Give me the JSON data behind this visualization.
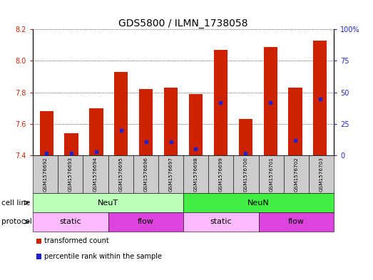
{
  "title": "GDS5800 / ILMN_1738058",
  "samples": [
    "GSM1576692",
    "GSM1576693",
    "GSM1576694",
    "GSM1576695",
    "GSM1576696",
    "GSM1576697",
    "GSM1576698",
    "GSM1576699",
    "GSM1576700",
    "GSM1576701",
    "GSM1576702",
    "GSM1576703"
  ],
  "transformed_count": [
    7.68,
    7.54,
    7.7,
    7.93,
    7.82,
    7.83,
    7.79,
    8.07,
    7.63,
    8.09,
    7.83,
    8.13
  ],
  "percentile_rank": [
    2,
    2,
    3,
    20,
    11,
    11,
    5,
    42,
    2,
    42,
    12,
    45
  ],
  "ymin": 7.4,
  "ymax": 8.2,
  "yticks": [
    7.4,
    7.6,
    7.8,
    8.0,
    8.2
  ],
  "right_yticks": [
    0,
    25,
    50,
    75,
    100
  ],
  "bar_color": "#cc2200",
  "blue_color": "#2222cc",
  "bar_width": 0.55,
  "cell_line_groups": [
    {
      "label": "NeuT",
      "start": 0,
      "end": 5,
      "color": "#bbffbb"
    },
    {
      "label": "NeuN",
      "start": 6,
      "end": 11,
      "color": "#44ee44"
    }
  ],
  "protocol_groups": [
    {
      "label": "static",
      "start": 0,
      "end": 2,
      "color": "#ffbbff"
    },
    {
      "label": "flow",
      "start": 3,
      "end": 5,
      "color": "#dd44dd"
    },
    {
      "label": "static",
      "start": 6,
      "end": 8,
      "color": "#ffbbff"
    },
    {
      "label": "flow",
      "start": 9,
      "end": 11,
      "color": "#dd44dd"
    }
  ],
  "legend_items": [
    {
      "label": "transformed count",
      "color": "#cc2200"
    },
    {
      "label": "percentile rank within the sample",
      "color": "#2222cc"
    }
  ],
  "left_axis_color": "#cc2200",
  "right_axis_color": "#2222cc",
  "tick_label_bg": "#cccccc",
  "fig_width": 5.23,
  "fig_height": 3.93,
  "dpi": 100,
  "title_fontsize": 10,
  "tick_fontsize": 7,
  "sample_fontsize": 5.2,
  "row_label_fontsize": 7.5,
  "group_label_fontsize": 8,
  "legend_fontsize": 7
}
